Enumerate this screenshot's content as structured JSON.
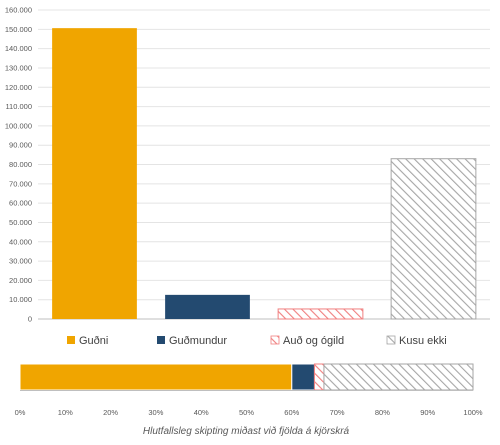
{
  "chart_data": [
    {
      "type": "bar",
      "categories": [
        "Guðni",
        "Guðmundur",
        "Auð og ógild",
        "Kusu ekki"
      ],
      "values": [
        150600,
        12500,
        5200,
        83000
      ],
      "ylim": [
        0,
        160000
      ],
      "yticks": [
        0,
        10000,
        20000,
        30000,
        40000,
        50000,
        60000,
        70000,
        80000,
        90000,
        100000,
        110000,
        120000,
        130000,
        140000,
        150000,
        160000
      ],
      "ytick_labels": [
        "0",
        "10.000",
        "20.000",
        "30.000",
        "40.000",
        "50.000",
        "60.000",
        "70.000",
        "80.000",
        "90.000",
        "100.000",
        "110.000",
        "120.000",
        "130.000",
        "140.000",
        "150.000",
        "160.000"
      ],
      "grid": true,
      "legend": {
        "placement": "bottom",
        "entries": [
          "Guðni",
          "Guðmundur",
          "Auð og ógild",
          "Kusu ekki"
        ]
      },
      "colors": {
        "Guðni": "#f0a500",
        "Guðmundur": "#234a70",
        "Auð og ógild": "#f08080",
        "Kusu ekki": "#a6a6a6"
      },
      "patterns": {
        "Guðni": "solid",
        "Guðmundur": "solid",
        "Auð og ógild": "hatch",
        "Kusu ekki": "hatch"
      }
    },
    {
      "type": "bar",
      "orientation": "horizontal-stacked",
      "series": [
        {
          "name": "Guðni",
          "values": [
            0.6
          ]
        },
        {
          "name": "Guðmundur",
          "values": [
            0.05
          ]
        },
        {
          "name": "Auð og ógild",
          "values": [
            0.021
          ]
        },
        {
          "name": "Kusu ekki",
          "values": [
            0.329
          ]
        }
      ],
      "xlim": [
        0,
        1
      ],
      "xticks": [
        0,
        0.1,
        0.2,
        0.3,
        0.4,
        0.5,
        0.6,
        0.7,
        0.8,
        0.9,
        1.0
      ],
      "xtick_labels": [
        "0%",
        "10%",
        "20%",
        "30%",
        "40%",
        "50%",
        "60%",
        "70%",
        "80%",
        "90%",
        "100%"
      ],
      "xlabel": "Hlutfallsleg skipting miðast við fjölda á kjörskrá"
    }
  ]
}
